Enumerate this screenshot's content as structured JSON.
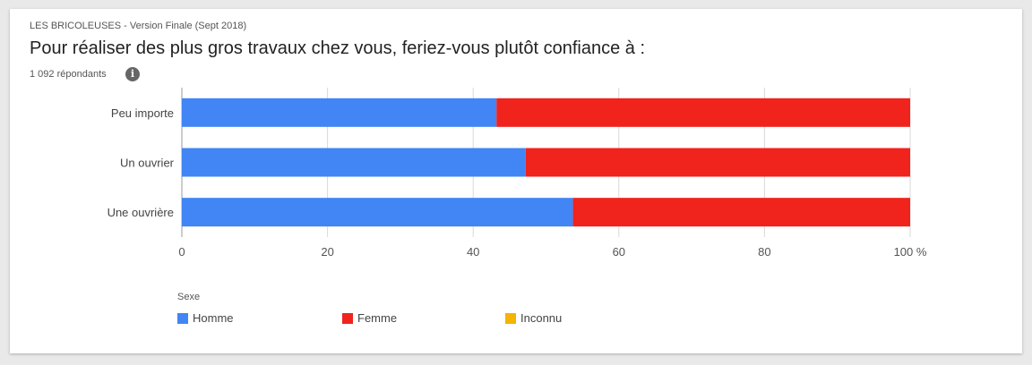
{
  "header": {
    "subtitle": "LES BRICOLEUSES - Version Finale (Sept 2018)",
    "title": "Pour réaliser des plus gros travaux chez vous, feriez-vous plutôt confiance à :",
    "respondents": "1 092 répondants",
    "info_icon": "info-icon"
  },
  "colors": {
    "homme": "#4285f4",
    "femme": "#f0231d",
    "inconnu": "#f4b400",
    "grid": "#d9d9d9",
    "axis": "#999999"
  },
  "chart_data": {
    "type": "bar",
    "orientation": "horizontal",
    "stacked": true,
    "categories": [
      "Peu importe",
      "Un ouvrier",
      "Une ouvrière"
    ],
    "series": [
      {
        "name": "Homme",
        "values": [
          43.2,
          47.2,
          53.7
        ]
      },
      {
        "name": "Femme",
        "values": [
          56.8,
          52.8,
          46.3
        ]
      },
      {
        "name": "Inconnu",
        "values": [
          0,
          0,
          0
        ]
      }
    ],
    "xticks": [
      "0",
      "20",
      "40",
      "60",
      "80",
      "100 %"
    ],
    "xlim": [
      0,
      100
    ],
    "grid": true,
    "legend": {
      "title": "Sexe",
      "position": "bottom-left"
    }
  }
}
